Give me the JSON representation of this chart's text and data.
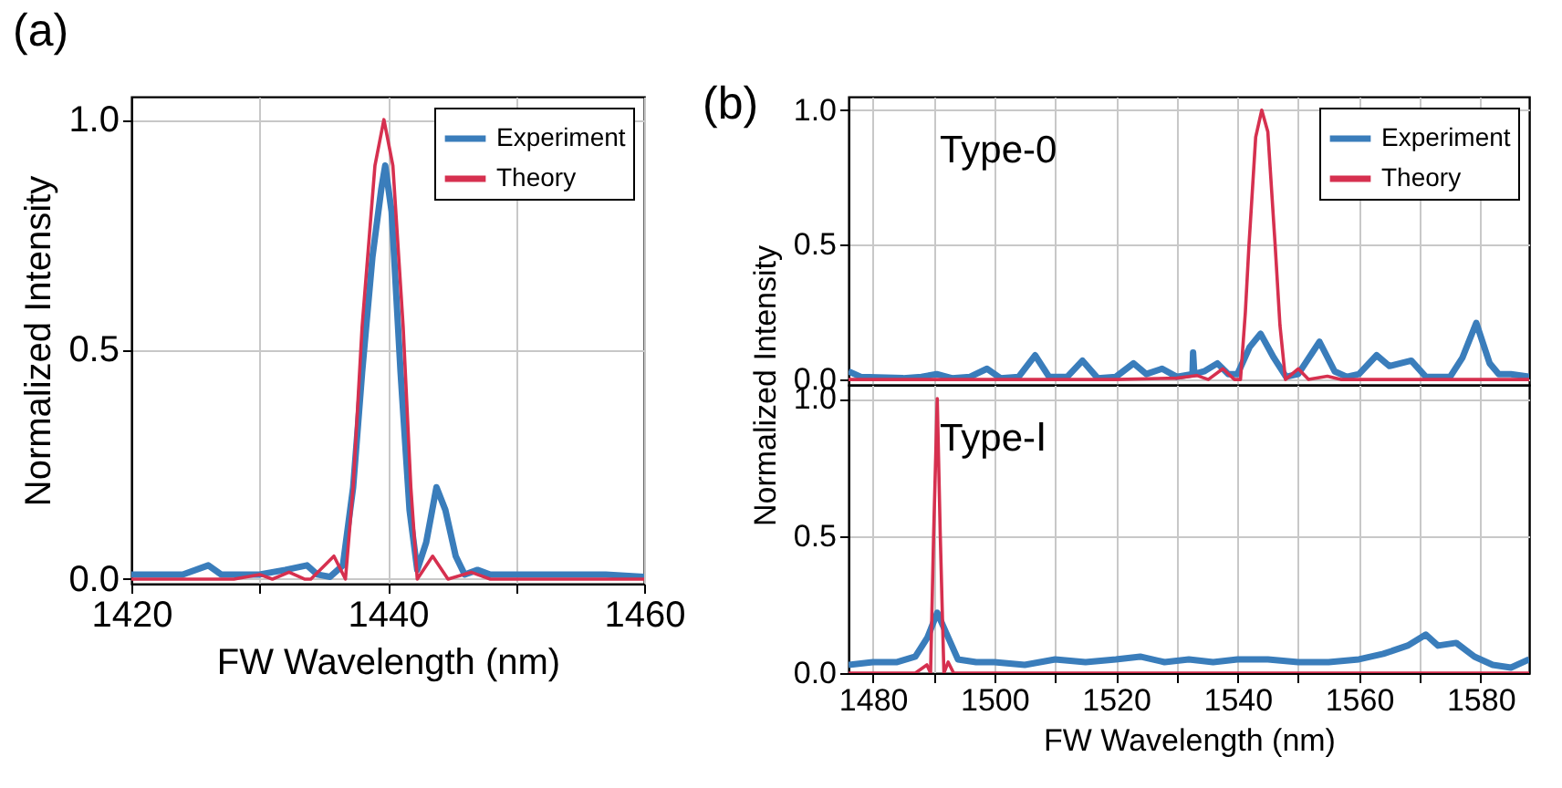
{
  "chart_data": [
    {
      "type": "line",
      "xlabel": "FW Wavelength (nm)",
      "ylabel": "Normalized Intensity",
      "annotations": [
        "(a)"
      ],
      "xlim": [
        1420,
        1460
      ],
      "xticks": [
        1420,
        {
          "value": 1430,
          "label": null
        },
        1440,
        {
          "value": 1450,
          "label": null
        },
        1460
      ],
      "ylim": [
        -0.01,
        1.05
      ],
      "yticks": [
        {
          "value": 0,
          "label": "0.0"
        },
        {
          "value": 0.5,
          "label": "0.5"
        },
        {
          "value": 1,
          "label": "1.0"
        }
      ],
      "grid": true,
      "legend": "top right",
      "series": [
        {
          "name": "Experiment",
          "color": "#3a7dbb",
          "x": [
            1420,
            1424,
            1426,
            1427,
            1430,
            1432,
            1433.7,
            1434.5,
            1435.5,
            1436.5,
            1437.3,
            1438,
            1438.8,
            1439.5,
            1439.8,
            1440.3,
            1441,
            1441.7,
            1442.3,
            1443,
            1443.8,
            1444.5,
            1445.3,
            1446,
            1447,
            1448,
            1455,
            1457,
            1460
          ],
          "values": [
            0.01,
            0.01,
            0.03,
            0.01,
            0.01,
            0.02,
            0.03,
            0.01,
            0.005,
            0.03,
            0.2,
            0.45,
            0.7,
            0.85,
            0.9,
            0.8,
            0.45,
            0.15,
            0.02,
            0.08,
            0.2,
            0.15,
            0.05,
            0.01,
            0.02,
            0.01,
            0.01,
            0.01,
            0.005
          ]
        },
        {
          "name": "Theory",
          "color": "#d6304f",
          "x": [
            1420,
            1428,
            1430,
            1431,
            1432.3,
            1433.5,
            1434,
            1435.8,
            1436.7,
            1437.3,
            1438,
            1439,
            1439.7,
            1440.4,
            1441.2,
            1441.8,
            1442.3,
            1443.5,
            1444.7,
            1446.5,
            1448,
            1460
          ],
          "values": [
            0,
            0,
            0.01,
            0,
            0.015,
            0,
            0,
            0.05,
            0,
            0.2,
            0.55,
            0.9,
            1.0,
            0.9,
            0.55,
            0.2,
            0,
            0.05,
            0,
            0.015,
            0,
            0
          ]
        }
      ]
    },
    {
      "type": "line",
      "ylabel": "Normalized Intensity",
      "annotations": [
        "(b)",
        "Type-0"
      ],
      "tick_labels": "y",
      "xlim": [
        1476,
        1588
      ],
      "xticks": [
        1480,
        {
          "value": 1490,
          "label": null
        },
        1500,
        {
          "value": 1510,
          "label": null
        },
        1520,
        {
          "value": 1530,
          "label": null
        },
        1540,
        {
          "value": 1550,
          "label": null
        },
        1560,
        {
          "value": 1570,
          "label": null
        },
        1580
      ],
      "ylim": [
        -0.02,
        1.05
      ],
      "yticks": [
        {
          "value": 0,
          "label": "0.0"
        },
        {
          "value": 0.5,
          "label": "0.5"
        },
        {
          "value": 1,
          "label": "1.0"
        }
      ],
      "grid": true,
      "legend": "top right",
      "series": [
        {
          "name": "Experiment",
          "color": "#3a7dbb",
          "x": [
            1476,
            1478,
            1485,
            1488,
            1490.5,
            1493,
            1496,
            1498.8,
            1501,
            1504,
            1506.7,
            1509,
            1512,
            1514.5,
            1517,
            1520,
            1522.9,
            1525,
            1527.6,
            1530,
            1532.6,
            1532.7,
            1532.9,
            1534.5,
            1536.7,
            1538.5,
            1540,
            1542,
            1543.8,
            1546,
            1548,
            1550,
            1553.5,
            1556,
            1558,
            1560,
            1562.9,
            1565,
            1568.6,
            1571,
            1575,
            1577,
            1579.3,
            1581.5,
            1583,
            1585,
            1588
          ],
          "values": [
            0.03,
            0.01,
            0.005,
            0.01,
            0.02,
            0.005,
            0.01,
            0.04,
            0.005,
            0.01,
            0.09,
            0.01,
            0.01,
            0.07,
            0.005,
            0.01,
            0.06,
            0.02,
            0.04,
            0.01,
            0.02,
            0.1,
            0.02,
            0.03,
            0.06,
            0.02,
            0.02,
            0.12,
            0.17,
            0.08,
            0.01,
            0.02,
            0.14,
            0.03,
            0.01,
            0.02,
            0.09,
            0.05,
            0.07,
            0.01,
            0.01,
            0.08,
            0.21,
            0.06,
            0.02,
            0.02,
            0.01
          ]
        },
        {
          "name": "Theory",
          "color": "#d6304f",
          "x": [
            1476,
            1520,
            1530,
            1533.3,
            1535.2,
            1537.6,
            1539.5,
            1540.5,
            1541.3,
            1541.9,
            1543,
            1544,
            1545,
            1546.2,
            1547,
            1547.9,
            1550,
            1551.7,
            1554.8,
            1557,
            1588
          ],
          "values": [
            0,
            0,
            0.005,
            0.015,
            0,
            0.04,
            0,
            0,
            0.25,
            0.5,
            0.9,
            1.0,
            0.92,
            0.5,
            0.2,
            0,
            0.04,
            0,
            0.012,
            0,
            0
          ]
        }
      ]
    },
    {
      "type": "line",
      "xlabel": "FW Wavelength (nm)",
      "annotations": [
        "Type-Ⅰ"
      ],
      "xlim": [
        1476,
        1588
      ],
      "xticks": [
        1480,
        {
          "value": 1490,
          "label": null
        },
        1500,
        {
          "value": 1510,
          "label": null
        },
        1520,
        {
          "value": 1530,
          "label": null
        },
        1540,
        {
          "value": 1550,
          "label": null
        },
        1560,
        {
          "value": 1570,
          "label": null
        },
        1580
      ],
      "ylim": [
        0,
        1.05
      ],
      "yticks": [
        {
          "value": 0,
          "label": "0.0"
        },
        {
          "value": 0.5,
          "label": "0.5"
        },
        {
          "value": 1,
          "label": "1.0"
        }
      ],
      "grid": true,
      "series": [
        {
          "color": "#3a7dbb",
          "x": [
            1476,
            1480,
            1484,
            1487,
            1489,
            1490.6,
            1492,
            1494,
            1497,
            1500,
            1505,
            1510,
            1515,
            1520,
            1524,
            1528,
            1532,
            1536,
            1540,
            1545,
            1550,
            1555,
            1560,
            1564,
            1568,
            1571,
            1573,
            1576,
            1579,
            1582,
            1585,
            1588
          ],
          "values": [
            0.03,
            0.04,
            0.04,
            0.06,
            0.13,
            0.22,
            0.15,
            0.05,
            0.04,
            0.04,
            0.03,
            0.05,
            0.04,
            0.05,
            0.06,
            0.04,
            0.05,
            0.04,
            0.05,
            0.05,
            0.04,
            0.04,
            0.05,
            0.07,
            0.1,
            0.14,
            0.1,
            0.11,
            0.06,
            0.03,
            0.02,
            0.05
          ]
        },
        {
          "color": "#d6304f",
          "x": [
            1476,
            1487,
            1488.9,
            1489.5,
            1490,
            1490.6,
            1491.1,
            1491.7,
            1492.4,
            1493.3,
            1588
          ],
          "values": [
            0,
            0,
            0.03,
            0,
            0.5,
            1.0,
            0.5,
            0,
            0.04,
            0,
            0
          ]
        }
      ]
    }
  ]
}
